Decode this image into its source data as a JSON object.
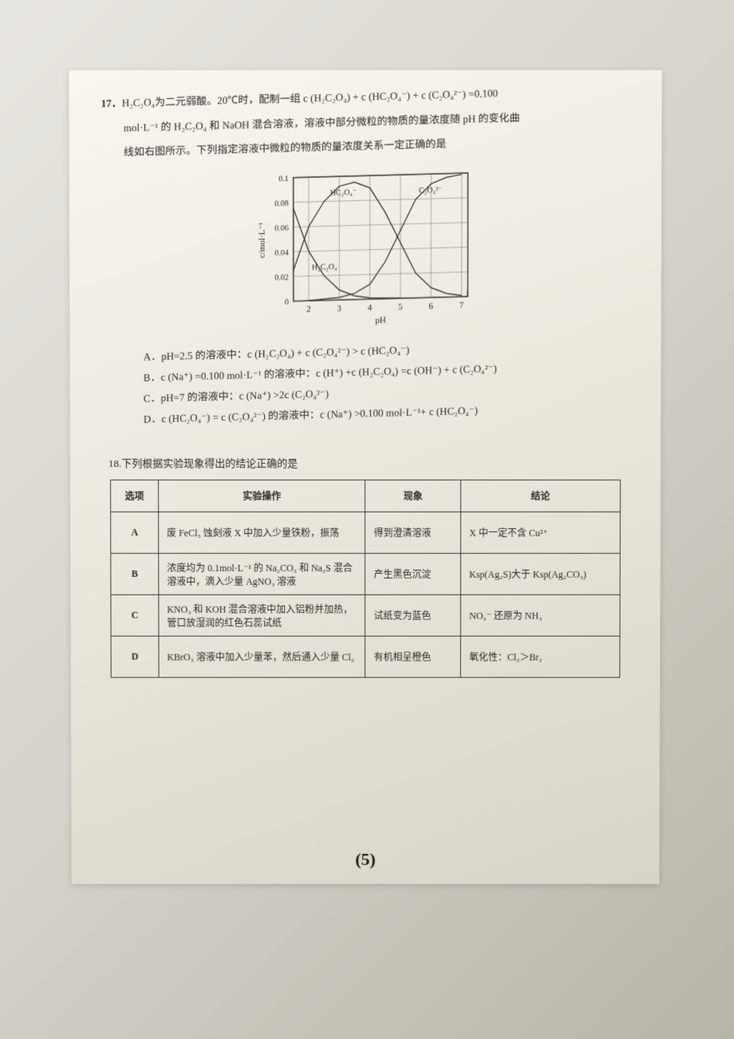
{
  "q17": {
    "number": "17．",
    "line1": "H₂C₂O₄为二元弱酸。20℃时，配制一组 c (H₂C₂O₄) + c (HC₂O₄⁻) + c (C₂O₄²⁻) =0.100",
    "line2": "mol·L⁻¹ 的 H₂C₂O₄ 和 NaOH 混合溶液，溶液中部分微粒的物质的量浓度随 pH 的变化曲",
    "line3": "线如右图所示。下列指定溶液中微粒的物质的量浓度关系一定正确的是",
    "chart": {
      "type": "line",
      "xlim": [
        1.5,
        7.2
      ],
      "ylim": [
        0,
        0.1
      ],
      "xticks": [
        2,
        3,
        4,
        5,
        6,
        7
      ],
      "yticks": [
        0,
        0.02,
        0.04,
        0.06,
        0.08,
        0.1
      ],
      "xlabel": "pH",
      "ylabel": "c/mol·L⁻¹",
      "label_fontsize": 11,
      "grid_color": "#6a6a6a",
      "background_color": "#e8e4d8",
      "line_color": "#2a2a2a",
      "line_width": 1.2,
      "series": {
        "H2C2O4": {
          "label": "H₂C₂O₄",
          "label_pos": [
            2.1,
            0.025
          ],
          "points": [
            [
              1.5,
              0.075
            ],
            [
              2,
              0.04
            ],
            [
              2.5,
              0.02
            ],
            [
              3,
              0.008
            ],
            [
              3.5,
              0.003
            ],
            [
              4,
              0.001
            ],
            [
              5,
              0
            ]
          ]
        },
        "HC2O4": {
          "label": "HC₂O₄⁻",
          "label_pos": [
            2.7,
            0.085
          ],
          "points": [
            [
              1.5,
              0.025
            ],
            [
              2,
              0.06
            ],
            [
              2.5,
              0.08
            ],
            [
              3,
              0.092
            ],
            [
              3.5,
              0.095
            ],
            [
              4,
              0.09
            ],
            [
              4.5,
              0.07
            ],
            [
              5,
              0.045
            ],
            [
              5.5,
              0.02
            ],
            [
              6,
              0.008
            ],
            [
              6.5,
              0.003
            ],
            [
              7,
              0.001
            ]
          ]
        },
        "C2O4": {
          "label": "C₂O₄²⁻",
          "label_pos": [
            5.6,
            0.085
          ],
          "points": [
            [
              2,
              0
            ],
            [
              3,
              0.002
            ],
            [
              3.5,
              0.005
            ],
            [
              4,
              0.012
            ],
            [
              4.5,
              0.03
            ],
            [
              5,
              0.055
            ],
            [
              5.5,
              0.08
            ],
            [
              6,
              0.092
            ],
            [
              6.5,
              0.097
            ],
            [
              7,
              0.099
            ]
          ]
        }
      }
    },
    "options": {
      "A": "A．pH=2.5 的溶液中：c (H₂C₂O₄) + c (C₂O₄²⁻) > c (HC₂O₄⁻)",
      "B": "B．c (Na⁺) =0.100 mol·L⁻¹ 的溶液中：c (H⁺) +c (H₂C₂O₄) =c (OH⁻) + c (C₂O₄²⁻)",
      "C": "C．pH=7 的溶液中：c (Na⁺) >2c (C₂O₄²⁻)",
      "D": "D．c (HC₂O₄⁻) = c (C₂O₄²⁻) 的溶液中：c (Na⁺) >0.100 mol·L⁻¹+ c (HC₂O₄⁻)"
    }
  },
  "q18": {
    "title": "18.下列根据实验现象得出的结论正确的是",
    "headers": [
      "选项",
      "实验操作",
      "现象",
      "结论"
    ],
    "rows": [
      {
        "opt": "A",
        "op": "废 FeCl₃ 蚀刻液 X 中加入少量铁粉，振荡",
        "obs": "得到澄清溶液",
        "con": "X 中一定不含 Cu²⁺"
      },
      {
        "opt": "B",
        "op": "浓度均为 0.1mol·L⁻¹ 的 Na₂CO₃ 和 Na₂S 混合溶液中，滴入少量 AgNO₃ 溶液",
        "obs": "产生黑色沉淀",
        "con": "Ksp(Ag₂S)大于 Ksp(Ag₂CO₃)"
      },
      {
        "opt": "C",
        "op": "KNO₃ 和 KOH 混合溶液中加入铝粉并加热，管口放湿润的红色石蕊试纸",
        "obs": "试纸变为蓝色",
        "con": "NO₃⁻ 还原为 NH₃"
      },
      {
        "opt": "D",
        "op": "KBrO₃ 溶液中加入少量苯，然后通入少量 Cl₂",
        "obs": "有机相呈橙色",
        "con": "氧化性：Cl₂＞Br₂"
      }
    ],
    "col_widths": [
      "60px",
      "260px",
      "120px",
      "200px"
    ]
  },
  "page_number": "(5)"
}
